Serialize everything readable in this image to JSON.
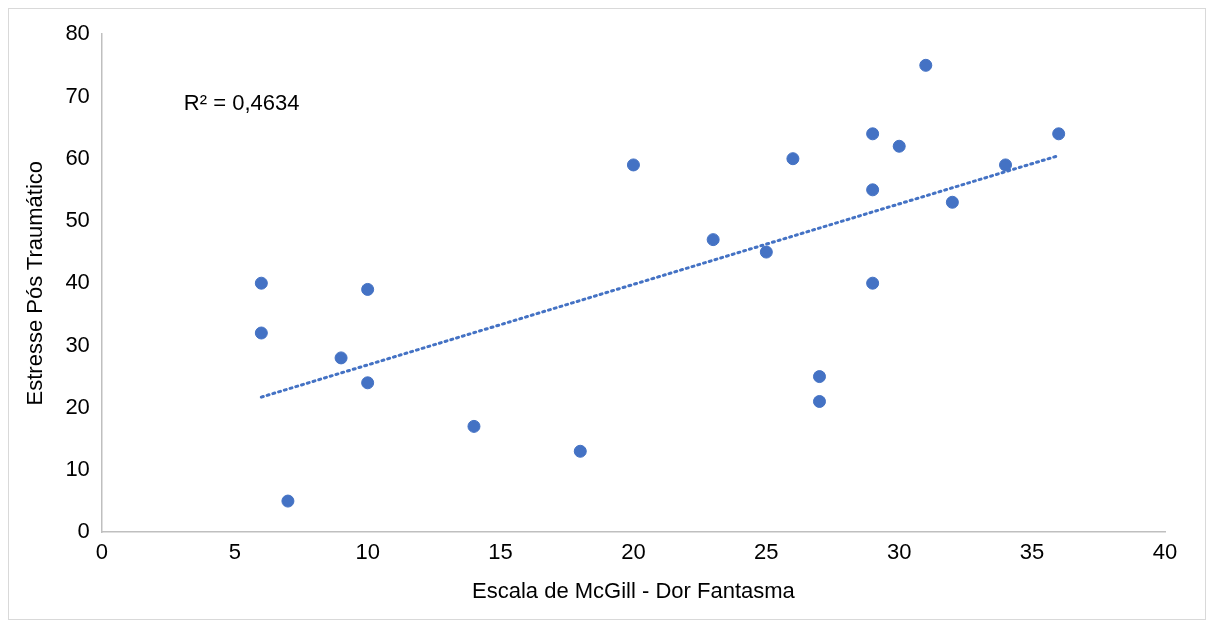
{
  "chart_data": {
    "type": "scatter",
    "xlabel": "Escala de McGill - Dor Fantasma",
    "ylabel": "Estresse Pós Traumático",
    "annotations": [
      "R² = 0,4634"
    ],
    "xlim": [
      0,
      40
    ],
    "ylim": [
      0,
      80
    ],
    "xticks": [
      0,
      5,
      10,
      15,
      20,
      25,
      30,
      35,
      40
    ],
    "yticks": [
      0,
      10,
      20,
      30,
      40,
      50,
      60,
      70,
      80
    ],
    "grid": false,
    "legend": false,
    "marker": "circle",
    "series": [
      {
        "color": "#4472c4",
        "x": [
          6,
          6,
          7,
          9,
          10,
          10,
          14,
          18,
          20,
          23,
          25,
          26,
          27,
          27,
          29,
          29,
          29,
          30,
          31,
          32,
          34,
          36
        ],
        "values": [
          40,
          32,
          5,
          28,
          39,
          24,
          17,
          13,
          59,
          47,
          45,
          60,
          25,
          21,
          64,
          55,
          40,
          62,
          75,
          53,
          59,
          64
        ]
      },
      {
        "type": "line",
        "color": "#4472c4",
        "line_style": "dotted",
        "marker": "none",
        "x": [
          6,
          36
        ],
        "values": [
          21.7,
          60.5
        ]
      }
    ]
  }
}
